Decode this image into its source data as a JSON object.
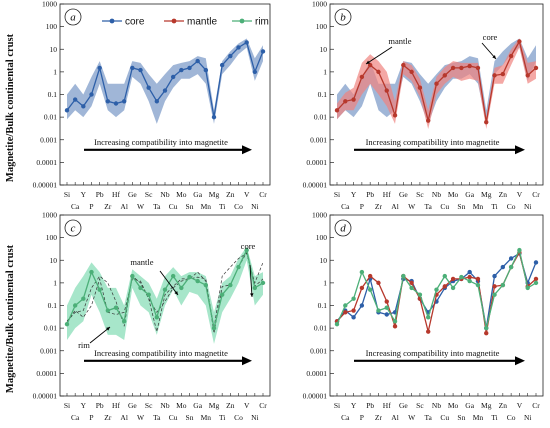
{
  "y_axis_label": "Magnetite/Bulk continental crust",
  "chart_data": [
    {
      "panel": "a",
      "type": "line",
      "ylabel": "Magnetite/Bulk continental crust",
      "y_scale": "log",
      "ylim": [
        1e-05,
        1000
      ],
      "y_ticks": [
        "1000",
        "100",
        "10",
        "1",
        "0.1",
        "0.01",
        "0.001",
        "0.0001",
        "0.00001"
      ],
      "elements_top": [
        "Si",
        "Y",
        "Pb",
        "Hf",
        "Ge",
        "Sc",
        "Nb",
        "Mo",
        "Ga",
        "Mg",
        "Zn",
        "V",
        "Cr"
      ],
      "elements_bottom": [
        "Ca",
        "P",
        "Zr",
        "Al",
        "W",
        "Ta",
        "Cu",
        "Sn",
        "Mn",
        "Ti",
        "Co",
        "Ni"
      ],
      "x": [
        "Si",
        "Ca",
        "Y",
        "P",
        "Pb",
        "Zr",
        "Hf",
        "Al",
        "Ge",
        "W",
        "Sc",
        "Ta",
        "Nb",
        "Cu",
        "Mo",
        "Sn",
        "Ga",
        "Mn",
        "Mg",
        "Ti",
        "Zn",
        "Co",
        "V",
        "Ni",
        "Cr"
      ],
      "legend": [
        "core",
        "mantle",
        "rim"
      ],
      "annotation": "Increasing compatibility into magnetite",
      "series": [
        {
          "name": "core",
          "color": "#2d5fa8",
          "values": [
            0.02,
            0.06,
            0.03,
            0.1,
            1.5,
            0.05,
            0.04,
            0.05,
            1.5,
            1.2,
            0.2,
            0.05,
            0.15,
            0.6,
            1.2,
            1.5,
            3,
            1.2,
            0.01,
            2,
            5,
            12,
            20,
            1,
            8
          ]
        }
      ],
      "bands": [
        {
          "series": "core",
          "color": "#2d5fa8",
          "upper": [
            0.1,
            0.3,
            0.1,
            0.6,
            3,
            0.3,
            0.3,
            0.3,
            3,
            2.5,
            0.8,
            0.3,
            0.8,
            2,
            2.5,
            3,
            5,
            4,
            0.02,
            3,
            8,
            18,
            30,
            4,
            15
          ],
          "lower": [
            0.008,
            0.02,
            0.01,
            0.03,
            0.3,
            0.02,
            0.01,
            0.02,
            0.6,
            0.3,
            0.05,
            0.005,
            0.05,
            0.2,
            0.5,
            0.5,
            0.8,
            0.3,
            0.005,
            0.8,
            2,
            6,
            12,
            0.4,
            3
          ]
        }
      ]
    },
    {
      "panel": "b",
      "type": "line",
      "y_scale": "log",
      "ylim": [
        1e-05,
        1000
      ],
      "y_ticks": [
        "1000",
        "100",
        "10",
        "1",
        "0.1",
        "0.01",
        "0.001",
        "0.0001",
        "0.00001"
      ],
      "elements_top": [
        "Si",
        "Y",
        "Pb",
        "Hf",
        "Ge",
        "Sc",
        "Nb",
        "Mo",
        "Ga",
        "Mg",
        "Zn",
        "V",
        "Cr"
      ],
      "elements_bottom": [
        "Ca",
        "P",
        "Zr",
        "Al",
        "W",
        "Ta",
        "Cu",
        "Sn",
        "Mn",
        "Ti",
        "Co",
        "Ni"
      ],
      "x": [
        "Si",
        "Ca",
        "Y",
        "P",
        "Pb",
        "Zr",
        "Hf",
        "Al",
        "Ge",
        "W",
        "Sc",
        "Ta",
        "Nb",
        "Cu",
        "Mo",
        "Sn",
        "Ga",
        "Mn",
        "Mg",
        "Ti",
        "Zn",
        "Co",
        "V",
        "Ni",
        "Cr"
      ],
      "labels": [
        "mantle",
        "core"
      ],
      "annotation": "Increasing compatibility into magnetite",
      "series": [
        {
          "name": "mantle",
          "color": "#b7382c",
          "values": [
            0.02,
            0.05,
            0.06,
            0.6,
            2.0,
            1.0,
            0.15,
            0.012,
            2.0,
            1.0,
            0.2,
            0.007,
            0.3,
            0.7,
            1.5,
            1.5,
            1.8,
            1.5,
            0.006,
            0.7,
            0.8,
            5,
            22,
            0.7,
            1.5
          ]
        }
      ],
      "bands": [
        {
          "series": "core",
          "color": "#2d5fa8",
          "upper": [
            0.1,
            0.3,
            0.1,
            0.6,
            3,
            0.3,
            0.3,
            0.3,
            3,
            2.5,
            0.8,
            0.3,
            0.8,
            2,
            2.5,
            3,
            5,
            4,
            0.02,
            3,
            8,
            18,
            30,
            4,
            15
          ],
          "lower": [
            0.008,
            0.02,
            0.01,
            0.03,
            0.3,
            0.02,
            0.01,
            0.02,
            0.6,
            0.3,
            0.05,
            0.005,
            0.05,
            0.2,
            0.5,
            0.5,
            0.8,
            0.3,
            0.005,
            0.8,
            2,
            6,
            12,
            0.4,
            3
          ]
        },
        {
          "series": "mantle",
          "color": "#e8403a",
          "upper": [
            0.04,
            0.12,
            0.2,
            2.5,
            6,
            3,
            1,
            0.05,
            3,
            2,
            0.5,
            0.02,
            0.6,
            1.6,
            3,
            2.5,
            2.5,
            2.5,
            0.01,
            1.5,
            2,
            10,
            30,
            2.5,
            3
          ],
          "lower": [
            0.008,
            0.02,
            0.02,
            0.1,
            0.3,
            0.1,
            0.03,
            0.005,
            0.8,
            0.4,
            0.08,
            0.003,
            0.1,
            0.3,
            0.6,
            0.4,
            0.5,
            0.4,
            0.003,
            0.3,
            0.3,
            2,
            12,
            0.3,
            0.5
          ]
        }
      ]
    },
    {
      "panel": "c",
      "type": "line",
      "ylabel": "Magnetite/Bulk continental crust",
      "y_scale": "log",
      "ylim": [
        1e-05,
        1000
      ],
      "y_ticks": [
        "1000",
        "100",
        "10",
        "1",
        "0.1",
        "0.01",
        "0.001",
        "0.0001",
        "0.00001"
      ],
      "elements_top": [
        "Si",
        "Y",
        "Pb",
        "Hf",
        "Ge",
        "Sc",
        "Nb",
        "Mo",
        "Ga",
        "Mg",
        "Zn",
        "V",
        "Cr"
      ],
      "elements_bottom": [
        "Ca",
        "P",
        "Zr",
        "Al",
        "W",
        "Ta",
        "Cu",
        "Sn",
        "Mn",
        "Ti",
        "Co",
        "Ni"
      ],
      "x": [
        "Si",
        "Ca",
        "Y",
        "P",
        "Pb",
        "Zr",
        "Hf",
        "Al",
        "Ge",
        "W",
        "Sc",
        "Ta",
        "Nb",
        "Cu",
        "Mo",
        "Sn",
        "Ga",
        "Mn",
        "Mg",
        "Ti",
        "Zn",
        "Co",
        "V",
        "Ni",
        "Cr"
      ],
      "labels": [
        "core",
        "mantle",
        "rim"
      ],
      "annotation": "Increasing compatibility into magnetite",
      "series": [
        {
          "name": "rim",
          "color": "#4caf78",
          "values": [
            0.015,
            0.1,
            0.2,
            3.0,
            0.5,
            0.06,
            0.08,
            0.02,
            2.0,
            0.6,
            0.3,
            0.03,
            0.5,
            2.0,
            0.6,
            1.8,
            1.2,
            0.8,
            0.01,
            0.3,
            0.8,
            5,
            28,
            0.6,
            1.0
          ]
        }
      ],
      "bands": [
        {
          "series": "rim",
          "color": "#3fc98b",
          "upper": [
            0.1,
            0.6,
            2,
            8,
            3,
            0.6,
            0.6,
            0.1,
            4,
            2,
            1,
            0.2,
            2,
            5,
            2,
            3,
            3,
            2,
            0.05,
            1,
            2,
            12,
            40,
            2,
            3
          ],
          "lower": [
            0.003,
            0.01,
            0.02,
            0.3,
            0.05,
            0.005,
            0.005,
            0.003,
            0.6,
            0.1,
            0.05,
            0.005,
            0.1,
            0.5,
            0.1,
            0.4,
            0.3,
            0.1,
            0.002,
            0.05,
            0.2,
            1,
            10,
            0.1,
            0.3
          ]
        }
      ],
      "outline_series": [
        {
          "name": "core",
          "values": [
            0.02,
            0.06,
            0.03,
            0.1,
            1.5,
            0.05,
            0.04,
            0.05,
            1.5,
            1.2,
            0.2,
            0.05,
            0.15,
            0.6,
            1.2,
            1.5,
            3,
            1.2,
            0.01,
            2,
            5,
            12,
            20,
            1,
            8
          ]
        },
        {
          "name": "mantle",
          "values": [
            0.02,
            0.05,
            0.06,
            0.6,
            2.0,
            1.0,
            0.15,
            0.012,
            2.0,
            1.0,
            0.2,
            0.007,
            0.3,
            0.7,
            1.5,
            1.5,
            1.8,
            1.5,
            0.006,
            0.7,
            0.8,
            5,
            22,
            0.7,
            1.5
          ]
        }
      ]
    },
    {
      "panel": "d",
      "type": "line",
      "y_scale": "log",
      "ylim": [
        1e-05,
        1000
      ],
      "y_ticks": [
        "1000",
        "100",
        "10",
        "1",
        "0.1",
        "0.01",
        "0.001",
        "0.0001",
        "0.00001"
      ],
      "elements_top": [
        "Si",
        "Y",
        "Pb",
        "Hf",
        "Ge",
        "Sc",
        "Nb",
        "Mo",
        "Ga",
        "Mg",
        "Zn",
        "V",
        "Cr"
      ],
      "elements_bottom": [
        "Ca",
        "P",
        "Zr",
        "Al",
        "W",
        "Ta",
        "Cu",
        "Sn",
        "Mn",
        "Ti",
        "Co",
        "Ni"
      ],
      "x": [
        "Si",
        "Ca",
        "Y",
        "P",
        "Pb",
        "Zr",
        "Hf",
        "Al",
        "Ge",
        "W",
        "Sc",
        "Ta",
        "Nb",
        "Cu",
        "Mo",
        "Sn",
        "Ga",
        "Mn",
        "Mg",
        "Ti",
        "Zn",
        "Co",
        "V",
        "Ni",
        "Cr"
      ],
      "annotation": "Increasing compatibility into magnetite",
      "series": [
        {
          "name": "core",
          "color": "#2d5fa8",
          "values": [
            0.02,
            0.06,
            0.03,
            0.1,
            1.5,
            0.05,
            0.04,
            0.05,
            1.5,
            1.2,
            0.2,
            0.05,
            0.15,
            0.6,
            1.2,
            1.5,
            3,
            1.2,
            0.01,
            2,
            5,
            12,
            20,
            1,
            8
          ]
        },
        {
          "name": "mantle",
          "color": "#b7382c",
          "values": [
            0.02,
            0.05,
            0.06,
            0.6,
            2.0,
            1.0,
            0.15,
            0.012,
            2.0,
            1.0,
            0.2,
            0.007,
            0.3,
            0.7,
            1.5,
            1.5,
            1.8,
            1.5,
            0.006,
            0.7,
            0.8,
            5,
            22,
            0.7,
            1.5
          ]
        },
        {
          "name": "rim",
          "color": "#4caf78",
          "values": [
            0.015,
            0.1,
            0.2,
            3.0,
            0.5,
            0.06,
            0.08,
            0.02,
            2.0,
            0.6,
            0.3,
            0.03,
            0.5,
            2.0,
            0.6,
            1.8,
            1.2,
            0.8,
            0.01,
            0.3,
            0.8,
            5,
            28,
            0.6,
            1.0
          ]
        }
      ]
    }
  ]
}
